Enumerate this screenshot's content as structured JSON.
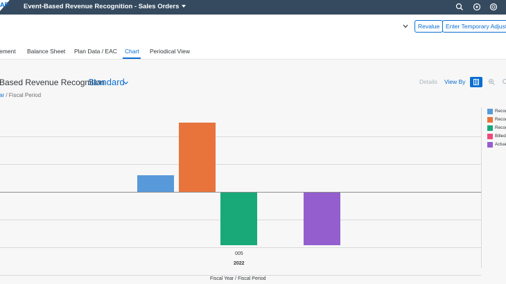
{
  "shell": {
    "logo_text": "AP",
    "app_title": "Event-Based Revenue Recognition - Sales Orders",
    "icons": [
      "search-icon",
      "notifications-icon",
      "help-icon"
    ]
  },
  "header": {
    "buttons": [
      "Revalue",
      "Enter Temporary Adjustm"
    ]
  },
  "tabs": [
    {
      "label": "ement",
      "active": false
    },
    {
      "label": "Balance Sheet",
      "active": false
    },
    {
      "label": "Plan Data / EAC",
      "active": false
    },
    {
      "label": "Chart",
      "active": true
    },
    {
      "label": "Periodical View",
      "active": false
    }
  ],
  "chart_header": {
    "title": "Based Revenue Recognition",
    "variant": "Standard",
    "details_label": "Details",
    "view_by_label": "View By",
    "breadcrumb_link": "ar",
    "breadcrumb_rest": " / Fiscal Period"
  },
  "chart_data": {
    "type": "bar",
    "categories": [
      "005"
    ],
    "group_label": "2022",
    "xlabel": "Fiscal Year / Fiscal Period",
    "ylabel": "",
    "ylim": [
      -3,
      2.5
    ],
    "grid": true,
    "legend_position": "right",
    "series": [
      {
        "name": "Recog",
        "color": "#5899da",
        "value": 0.6
      },
      {
        "name": "Recog",
        "color": "#e8743b",
        "value": 2.5
      },
      {
        "name": "Recog",
        "color": "#19a979",
        "value": -1.9
      },
      {
        "name": "Billed",
        "color": "#ed4a7b",
        "value": 0
      },
      {
        "name": "Actua",
        "color": "#945ecf",
        "value": -1.9
      }
    ]
  }
}
